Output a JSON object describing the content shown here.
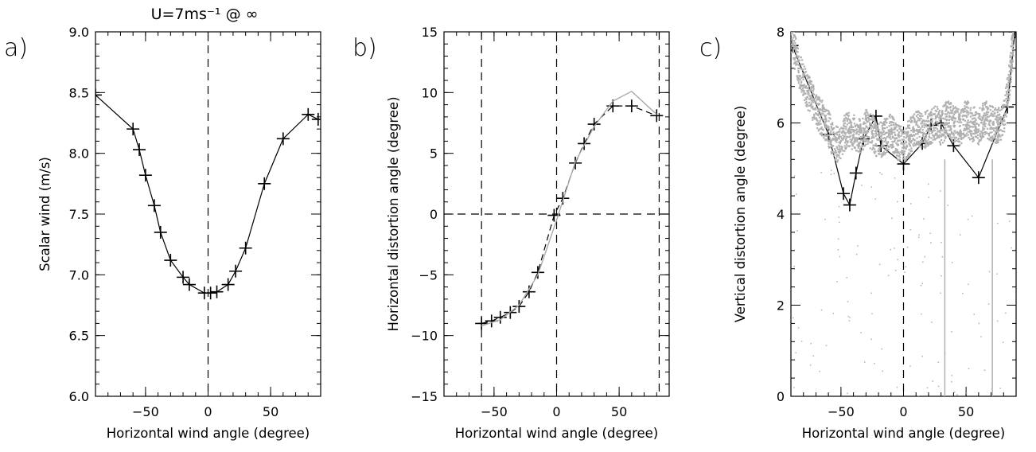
{
  "figure_title": "U=7ms⁻¹ @ ∞",
  "colors": {
    "series": "#000000",
    "secondary": "#a9a9a9",
    "cloud": "#b0b0b0"
  },
  "chart_data": [
    {
      "panel": "a)",
      "type": "line",
      "xlabel": "Horizontal wind angle (degree)",
      "ylabel": "Scalar wind (m/s)",
      "xlim": [
        -90,
        90
      ],
      "ylim": [
        6.0,
        9.0
      ],
      "xticks": [
        -50,
        0,
        50
      ],
      "yticks": [
        6.0,
        6.5,
        7.0,
        7.5,
        8.0,
        8.5,
        9.0
      ],
      "ytick_labels": [
        "6.0",
        "6.5",
        "7.0",
        "7.5",
        "8.0",
        "8.5",
        "9.0"
      ],
      "vlines": [
        0
      ],
      "hlines": [],
      "series": [
        {
          "style": "line+markers",
          "x": [
            -90,
            -60,
            -55,
            -50,
            -43,
            -38,
            -30,
            -20,
            -15,
            -3,
            2,
            7,
            16,
            22,
            30,
            45,
            60,
            80,
            88
          ],
          "y": [
            8.48,
            8.2,
            8.03,
            7.82,
            7.57,
            7.35,
            7.12,
            6.98,
            6.92,
            6.85,
            6.85,
            6.86,
            6.92,
            7.03,
            7.22,
            7.75,
            8.12,
            8.32,
            8.28
          ]
        }
      ]
    },
    {
      "panel": "b)",
      "type": "line",
      "xlabel": "Horizontal wind angle (degree)",
      "ylabel": "Horizontal distortion angle (degree)",
      "xlim": [
        -90,
        90
      ],
      "ylim": [
        -15,
        15
      ],
      "xticks": [
        -50,
        0,
        50
      ],
      "yticks": [
        -15,
        -10,
        -5,
        0,
        5,
        10,
        15
      ],
      "ytick_labels": [
        "−15",
        "−10",
        "−5",
        "0",
        "5",
        "10",
        "15"
      ],
      "vlines": [
        -60,
        0,
        82
      ],
      "hlines": [
        0
      ],
      "series": [
        {
          "style": "dashed+markers",
          "x": [
            -60,
            -52,
            -45,
            -37,
            -30,
            -22,
            -15,
            -2,
            5,
            15,
            22,
            30,
            45,
            60,
            80
          ],
          "y": [
            -9.0,
            -8.8,
            -8.5,
            -8.1,
            -7.6,
            -6.4,
            -4.8,
            -0.1,
            1.3,
            4.2,
            5.8,
            7.4,
            8.9,
            8.9,
            8.1
          ]
        },
        {
          "style": "grey-line",
          "x": [
            -60,
            -45,
            -30,
            -15,
            0,
            15,
            30,
            45,
            60,
            80
          ],
          "y": [
            -9.2,
            -8.7,
            -7.5,
            -5.0,
            -0.5,
            4.3,
            7.2,
            9.3,
            10.1,
            8.2
          ]
        }
      ]
    },
    {
      "panel": "c)",
      "type": "line",
      "xlabel": "Horizontal wind angle (degree)",
      "ylabel": "Vertical distortion angle (degree)",
      "xlim": [
        -90,
        90
      ],
      "ylim": [
        0,
        8
      ],
      "xticks": [
        -50,
        0,
        50
      ],
      "yticks": [
        0,
        2,
        4,
        6,
        8
      ],
      "ytick_labels": [
        "0",
        "2",
        "4",
        "6",
        "8"
      ],
      "vlines": [
        0
      ],
      "hlines": [],
      "series": [
        {
          "style": "line+markers",
          "x": [
            -89,
            -60,
            -48,
            -43,
            -38,
            -32,
            -22,
            -18,
            0,
            15,
            22,
            30,
            40,
            60,
            83,
            89
          ],
          "y": [
            7.7,
            5.75,
            4.45,
            4.2,
            4.9,
            5.65,
            6.15,
            5.5,
            5.1,
            5.55,
            5.95,
            6.0,
            5.5,
            4.8,
            6.35,
            8.0
          ]
        },
        {
          "style": "grey-scatter",
          "x": [
            -90,
            -85,
            -80,
            -75,
            -70,
            -65,
            -60,
            -55,
            -50,
            -45,
            -40,
            -35,
            -30,
            -25,
            -20,
            -15,
            -10,
            -5,
            0,
            5,
            10,
            15,
            20,
            25,
            30,
            35,
            40,
            45,
            50,
            55,
            60,
            65,
            70,
            75,
            80,
            85,
            88
          ],
          "y": [
            8.0,
            7.3,
            6.9,
            6.6,
            6.3,
            6.1,
            5.9,
            5.5,
            5.6,
            5.9,
            5.8,
            5.7,
            5.9,
            5.8,
            5.6,
            5.7,
            5.8,
            5.6,
            5.5,
            5.7,
            5.9,
            5.8,
            5.9,
            6.0,
            5.9,
            6.1,
            6.0,
            5.9,
            6.1,
            6.0,
            5.9,
            6.1,
            6.0,
            5.9,
            6.1,
            7.0,
            8.0
          ]
        }
      ]
    }
  ]
}
